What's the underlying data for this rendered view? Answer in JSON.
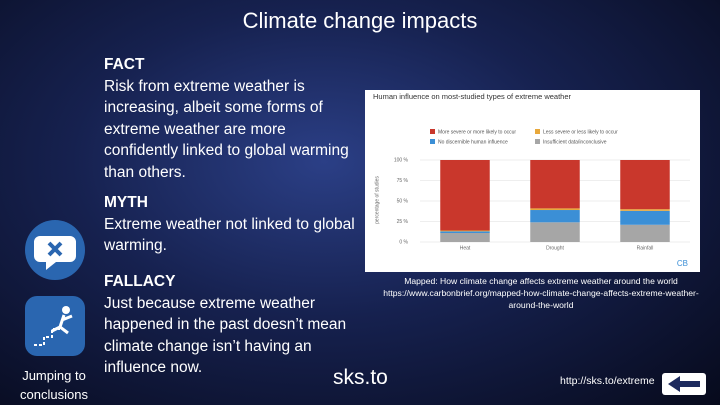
{
  "slide": {
    "title": "Climate change impacts",
    "fact": {
      "heading": "FACT",
      "text": "Risk from extreme weather is increasing, albeit some forms of extreme weather are more confidently linked to global warming than others."
    },
    "myth": {
      "heading": "MYTH",
      "text": "Extreme weather not linked to global warming."
    },
    "fallacy": {
      "heading": "FALLACY",
      "text": "Just because extreme weather happened in the past doesn’t mean climate change isn’t having an influence now."
    },
    "fallacy_name": "Jumping to conclusions",
    "caption": "Mapped: How climate change affects extreme weather around the world https://www.carbonbrief.org/mapped-how-climate-change-affects-extreme-weather-around-the-world",
    "logo": "sks.to",
    "url": "http://sks.to/extreme"
  },
  "chart_data": {
    "type": "stacked-bar",
    "title": "Human influence on most-studied types of extreme weather",
    "ylabel": "percentage of studies",
    "categories": [
      "Heat",
      "Drought",
      "Rainfall"
    ],
    "series": [
      {
        "name": "Insufficient data/inconclusive",
        "color": "#a6a6a6",
        "values": [
          11,
          24,
          21
        ]
      },
      {
        "name": "No discernible human influence",
        "color": "#3b8fd6",
        "values": [
          2,
          15,
          17
        ]
      },
      {
        "name": "Less severe or less likely to occur",
        "color": "#e8a83b",
        "values": [
          1,
          2,
          2
        ]
      },
      {
        "name": "More severe or more likely to occur",
        "color": "#c9372c",
        "values": [
          86,
          59,
          60
        ]
      }
    ],
    "ylim": [
      0,
      100
    ],
    "yticks": [
      {
        "value": 0,
        "label": "0 %"
      },
      {
        "value": 25,
        "label": "25 %"
      },
      {
        "value": 50,
        "label": "50 %"
      },
      {
        "value": 75,
        "label": "75 %"
      },
      {
        "value": 100,
        "label": "100 %"
      }
    ],
    "grid": true,
    "brand": "CB"
  }
}
